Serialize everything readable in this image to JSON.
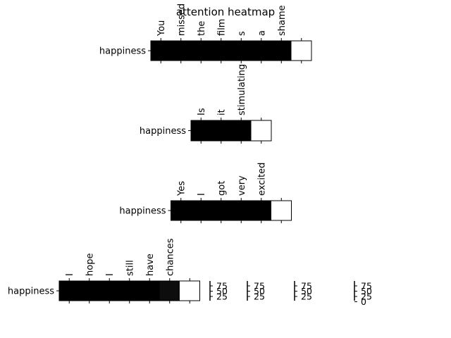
{
  "chart_data": {
    "type": "heatmap",
    "title": "attention heatmap",
    "rows": [
      {
        "ylabel": "happiness",
        "tokens": [
          "You",
          "missed",
          "the",
          "film",
          "s",
          "a",
          "shame",
          ""
        ],
        "values": [
          1,
          1,
          1,
          1,
          1,
          1,
          1,
          0
        ]
      },
      {
        "ylabel": "happiness",
        "tokens": [
          "Is",
          "it",
          "stimulating",
          ""
        ],
        "values": [
          1,
          1,
          1,
          0
        ]
      },
      {
        "ylabel": "happiness",
        "tokens": [
          "Yes",
          "I",
          "got",
          "very",
          "excited",
          ""
        ],
        "values": [
          1,
          1,
          1,
          1,
          1,
          0
        ]
      },
      {
        "ylabel": "happiness",
        "tokens": [
          "I",
          "hope",
          "I",
          "still",
          "have",
          "chances",
          ""
        ],
        "values": [
          1,
          1,
          1,
          1,
          1,
          0.95,
          0
        ]
      }
    ],
    "colorbars": [
      {
        "ticks": [
          "75",
          "50",
          "25"
        ]
      },
      {
        "ticks": [
          "75",
          "50",
          "25"
        ]
      },
      {
        "ticks": [
          "75",
          "50",
          "25"
        ]
      },
      {
        "ticks": [
          "75",
          "50",
          "25",
          "0"
        ]
      }
    ],
    "colormap": [
      "#ffffff",
      "#000000"
    ]
  }
}
